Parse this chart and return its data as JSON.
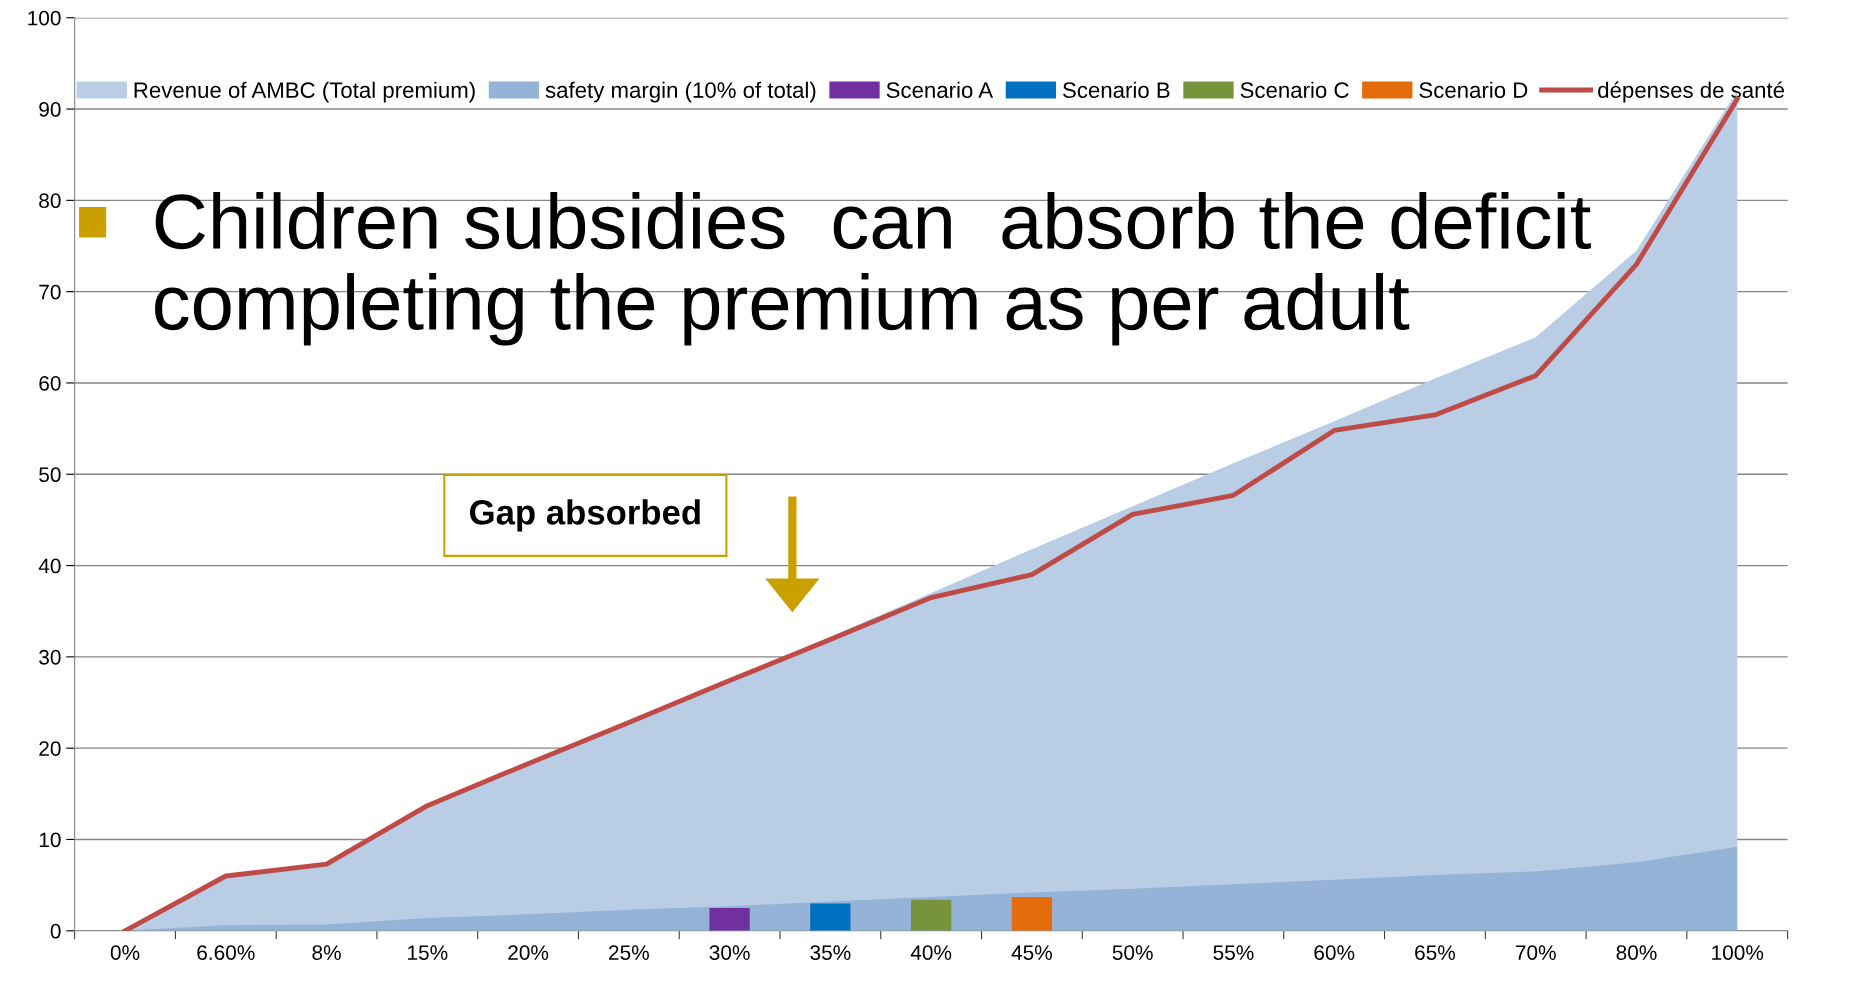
{
  "chart_data": {
    "type": "area",
    "categories": [
      "0%",
      "6.60%",
      "8%",
      "15%",
      "20%",
      "25%",
      "30%",
      "35%",
      "40%",
      "45%",
      "50%",
      "55%",
      "60%",
      "65%",
      "70%",
      "80%",
      "100%"
    ],
    "series": [
      {
        "name": "Revenue of AMBC (Total premium)",
        "color": "#b9cde5",
        "values": [
          0,
          6.0,
          7.3,
          13.7,
          18.3,
          22.8,
          27.5,
          32.2,
          37.0,
          41.8,
          46.5,
          51.2,
          55.8,
          60.5,
          65.0,
          74.5,
          92.0
        ]
      },
      {
        "name": "safety margin (10% of total)",
        "color": "#95b3d7",
        "values": [
          0,
          0.6,
          0.7,
          1.4,
          1.8,
          2.3,
          2.7,
          3.2,
          3.7,
          4.2,
          4.6,
          5.1,
          5.6,
          6.1,
          6.5,
          7.5,
          9.2
        ]
      },
      {
        "name": "Scenario A",
        "type": "bar",
        "color": "#7030a0",
        "values": [
          null,
          null,
          null,
          null,
          null,
          null,
          2.5,
          null,
          null,
          null,
          null,
          null,
          null,
          null,
          null,
          null,
          null
        ]
      },
      {
        "name": "Scenario B",
        "type": "bar",
        "color": "#0070c0",
        "values": [
          null,
          null,
          null,
          null,
          null,
          null,
          null,
          3.0,
          null,
          null,
          null,
          null,
          null,
          null,
          null,
          null,
          null
        ]
      },
      {
        "name": "Scenario C",
        "type": "bar",
        "color": "#77933c",
        "values": [
          null,
          null,
          null,
          null,
          null,
          null,
          null,
          null,
          3.4,
          null,
          null,
          null,
          null,
          null,
          null,
          null,
          null
        ]
      },
      {
        "name": "Scenario D",
        "type": "bar",
        "color": "#e46c0a",
        "values": [
          null,
          null,
          null,
          null,
          null,
          null,
          null,
          null,
          null,
          3.7,
          null,
          null,
          null,
          null,
          null,
          null,
          null
        ]
      },
      {
        "name": "dépenses de santé",
        "type": "line",
        "color": "#be4b48",
        "values": [
          0,
          6.0,
          7.3,
          13.7,
          18.3,
          22.8,
          27.4,
          31.9,
          36.5,
          39.0,
          45.6,
          47.7,
          54.8,
          56.5,
          60.8,
          73.0,
          91.1
        ]
      }
    ],
    "annotations": [
      "Children subsidies  can  absorb the deficit\ncompleting the premium as per adult",
      "Gap absorbed"
    ],
    "ylim": [
      0,
      100
    ],
    "yticks": [
      0,
      10,
      20,
      30,
      40,
      50,
      60,
      70,
      80,
      90,
      100
    ],
    "grid": "y",
    "legend": "top",
    "marker": "none",
    "line_style": "solid"
  }
}
